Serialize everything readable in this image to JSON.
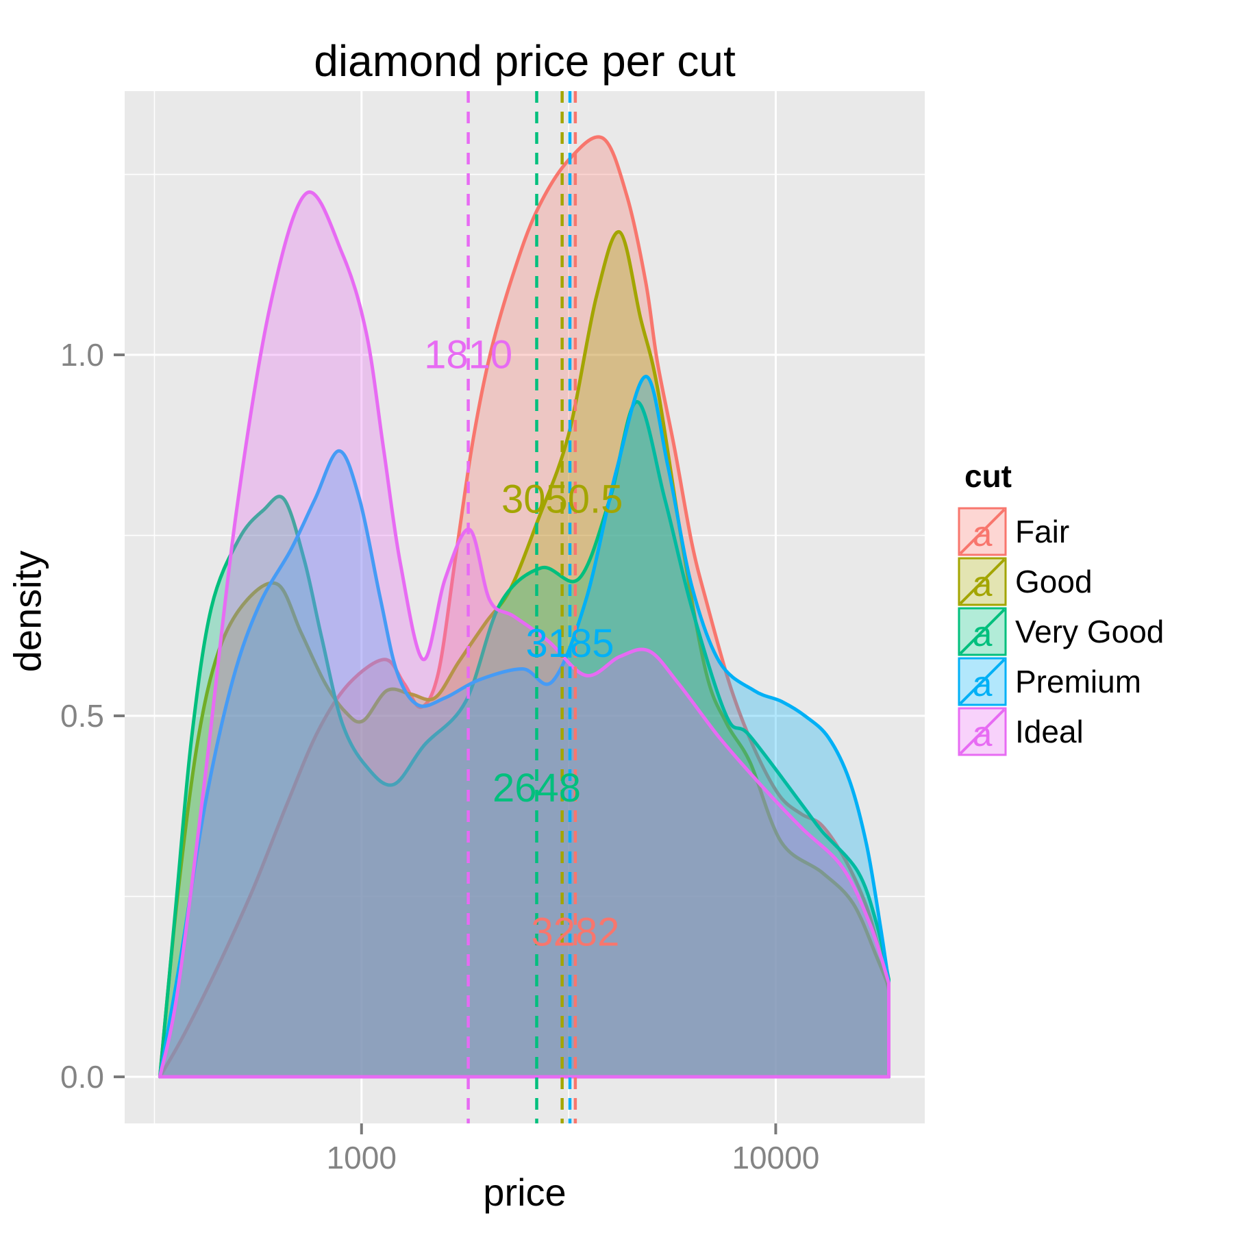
{
  "title": "diamond price per cut",
  "axes": {
    "x_label": "price",
    "y_label": "density"
  },
  "legend": {
    "title": "cut",
    "glyph": "a",
    "items": [
      {
        "label": "Fair",
        "color": "#F8766D"
      },
      {
        "label": "Good",
        "color": "#A3A500"
      },
      {
        "label": "Very Good",
        "color": "#00BF7D"
      },
      {
        "label": "Premium",
        "color": "#00B0F6"
      },
      {
        "label": "Ideal",
        "color": "#E76BF3"
      }
    ]
  },
  "colors": {
    "panel_bg": "#E9E9E9",
    "grid": "#FFFFFF",
    "tick_mark": "#7A7A7A",
    "tick_label": "#848484"
  },
  "chart_data": {
    "type": "area",
    "title": "diamond price per cut",
    "xlabel": "price",
    "ylabel": "density",
    "x_scale": "log10",
    "x_domain": [
      268,
      22900
    ],
    "y_domain": [
      -0.0645,
      1.3653
    ],
    "x_ticks": [
      {
        "value": 1000,
        "label": "1000"
      },
      {
        "value": 10000,
        "label": "10000"
      }
    ],
    "x_minor": [
      316.23,
      3162.3
    ],
    "y_ticks": [
      {
        "value": 0,
        "label": "0.0"
      },
      {
        "value": 0.5,
        "label": "0.5"
      },
      {
        "value": 1,
        "label": "1.0"
      }
    ],
    "y_minor": [
      0.25,
      0.75,
      1.25
    ],
    "fill_alpha": 0.3,
    "line_width": 5,
    "series": [
      {
        "name": "Fair",
        "color": "#F8766D",
        "points": [
          [
            326,
            0
          ],
          [
            374,
            0.06
          ],
          [
            452,
            0.155
          ],
          [
            547,
            0.26
          ],
          [
            663,
            0.38
          ],
          [
            787,
            0.48
          ],
          [
            934,
            0.545
          ],
          [
            1138,
            0.578
          ],
          [
            1266,
            0.545
          ],
          [
            1393,
            0.512
          ],
          [
            1533,
            0.56
          ],
          [
            1687,
            0.72
          ],
          [
            1856,
            0.88
          ],
          [
            2043,
            1.0
          ],
          [
            2318,
            1.11
          ],
          [
            2652,
            1.2
          ],
          [
            3163,
            1.27
          ],
          [
            3827,
            1.3
          ],
          [
            4372,
            1.22
          ],
          [
            4857,
            1.1
          ],
          [
            5180,
            0.99
          ],
          [
            5700,
            0.87
          ],
          [
            6270,
            0.74
          ],
          [
            6790,
            0.66
          ],
          [
            7780,
            0.54
          ],
          [
            8870,
            0.455
          ],
          [
            10200,
            0.39
          ],
          [
            11540,
            0.364
          ],
          [
            12940,
            0.348
          ],
          [
            14740,
            0.3
          ],
          [
            16590,
            0.235
          ],
          [
            17880,
            0.17
          ],
          [
            18750,
            0.12
          ]
        ]
      },
      {
        "name": "Good",
        "color": "#A3A500",
        "points": [
          [
            326,
            0
          ],
          [
            358,
            0.24
          ],
          [
            401,
            0.46
          ],
          [
            452,
            0.59
          ],
          [
            528,
            0.66
          ],
          [
            628,
            0.682
          ],
          [
            715,
            0.615
          ],
          [
            817,
            0.545
          ],
          [
            916,
            0.505
          ],
          [
            1008,
            0.493
          ],
          [
            1152,
            0.535
          ],
          [
            1316,
            0.53
          ],
          [
            1504,
            0.525
          ],
          [
            1718,
            0.575
          ],
          [
            2000,
            0.63
          ],
          [
            2284,
            0.675
          ],
          [
            2662,
            0.77
          ],
          [
            3163,
            0.89
          ],
          [
            3688,
            1.08
          ],
          [
            4200,
            1.17
          ],
          [
            4720,
            1.05
          ],
          [
            5180,
            0.955
          ],
          [
            5940,
            0.74
          ],
          [
            6790,
            0.56
          ],
          [
            7600,
            0.49
          ],
          [
            8680,
            0.435
          ],
          [
            10320,
            0.325
          ],
          [
            12940,
            0.283
          ],
          [
            15380,
            0.24
          ],
          [
            17560,
            0.165
          ],
          [
            18750,
            0.125
          ]
        ]
      },
      {
        "name": "Very Good",
        "color": "#00BF7D",
        "points": [
          [
            326,
            0
          ],
          [
            354,
            0.22
          ],
          [
            389,
            0.47
          ],
          [
            434,
            0.65
          ],
          [
            506,
            0.745
          ],
          [
            580,
            0.785
          ],
          [
            650,
            0.8
          ],
          [
            728,
            0.715
          ],
          [
            800,
            0.61
          ],
          [
            898,
            0.49
          ],
          [
            1027,
            0.43
          ],
          [
            1196,
            0.405
          ],
          [
            1420,
            0.46
          ],
          [
            1785,
            0.52
          ],
          [
            2160,
            0.655
          ],
          [
            2715,
            0.705
          ],
          [
            3350,
            0.69
          ],
          [
            3975,
            0.8
          ],
          [
            4625,
            0.935
          ],
          [
            5400,
            0.8
          ],
          [
            6270,
            0.65
          ],
          [
            7600,
            0.5
          ],
          [
            8640,
            0.473
          ],
          [
            11540,
            0.378
          ],
          [
            12940,
            0.34
          ],
          [
            15800,
            0.284
          ],
          [
            17560,
            0.21
          ],
          [
            18750,
            0.135
          ]
        ]
      },
      {
        "name": "Premium",
        "color": "#00B0F6",
        "points": [
          [
            326,
            0
          ],
          [
            367,
            0.17
          ],
          [
            420,
            0.38
          ],
          [
            489,
            0.55
          ],
          [
            568,
            0.655
          ],
          [
            675,
            0.73
          ],
          [
            772,
            0.8
          ],
          [
            882,
            0.867
          ],
          [
            989,
            0.8
          ],
          [
            1108,
            0.665
          ],
          [
            1219,
            0.56
          ],
          [
            1368,
            0.515
          ],
          [
            1592,
            0.525
          ],
          [
            1926,
            0.55
          ],
          [
            2449,
            0.565
          ],
          [
            2894,
            0.548
          ],
          [
            3480,
            0.66
          ],
          [
            4125,
            0.84
          ],
          [
            4857,
            0.97
          ],
          [
            5495,
            0.845
          ],
          [
            6270,
            0.68
          ],
          [
            7310,
            0.575
          ],
          [
            8870,
            0.535
          ],
          [
            10320,
            0.52
          ],
          [
            11760,
            0.5
          ],
          [
            13400,
            0.47
          ],
          [
            15080,
            0.41
          ],
          [
            16590,
            0.32
          ],
          [
            17880,
            0.21
          ],
          [
            18750,
            0.13
          ]
        ]
      },
      {
        "name": "Ideal",
        "color": "#E76BF3",
        "points": [
          [
            326,
            0
          ],
          [
            360,
            0.12
          ],
          [
            420,
            0.42
          ],
          [
            498,
            0.78
          ],
          [
            603,
            1.07
          ],
          [
            737,
            1.224
          ],
          [
            899,
            1.14
          ],
          [
            1027,
            1.03
          ],
          [
            1130,
            0.87
          ],
          [
            1242,
            0.71
          ],
          [
            1410,
            0.578
          ],
          [
            1592,
            0.69
          ],
          [
            1825,
            0.758
          ],
          [
            2040,
            0.66
          ],
          [
            2330,
            0.638
          ],
          [
            2820,
            0.604
          ],
          [
            3480,
            0.556
          ],
          [
            4200,
            0.582
          ],
          [
            4940,
            0.59
          ],
          [
            5820,
            0.545
          ],
          [
            7310,
            0.47
          ],
          [
            9180,
            0.405
          ],
          [
            11540,
            0.345
          ],
          [
            14500,
            0.29
          ],
          [
            16930,
            0.21
          ],
          [
            18750,
            0.13
          ]
        ]
      }
    ],
    "medians": [
      {
        "name": "Ideal",
        "value": 1810,
        "label": "1810",
        "label_y": 1.0,
        "color": "#E76BF3"
      },
      {
        "name": "Good",
        "value": 3050.5,
        "label": "3050.5",
        "label_y": 0.8,
        "color": "#A3A500"
      },
      {
        "name": "Premium",
        "value": 3185,
        "label": "3185",
        "label_y": 0.6,
        "color": "#00B0F6"
      },
      {
        "name": "Very Good",
        "value": 2648,
        "label": "2648",
        "label_y": 0.4,
        "color": "#00BF7D"
      },
      {
        "name": "Fair",
        "value": 3282,
        "label": "3282",
        "label_y": 0.2,
        "color": "#F8766D"
      }
    ],
    "legend_position": "right",
    "grid": true
  }
}
